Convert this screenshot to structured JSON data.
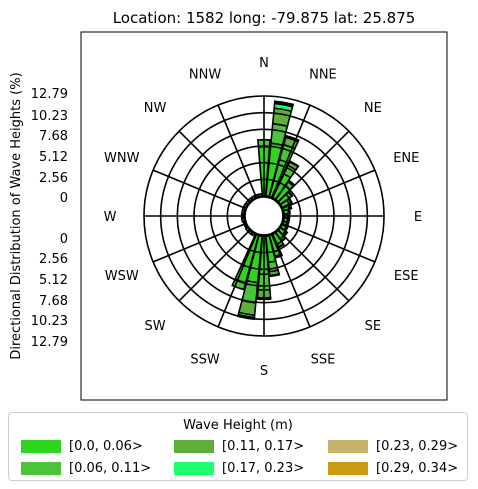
{
  "chart_data": {
    "type": "windrose",
    "title": "Location: 1582 long: -79.875 lat: 25.875",
    "ylabel": "Directional Distribution of Wave Heights (%)",
    "radial_ticks_upper": [
      "12.79",
      "10.23",
      "7.68",
      "5.12",
      "2.56",
      "0"
    ],
    "radial_ticks_lower": [
      "0",
      "2.56",
      "5.12",
      "7.68",
      "10.23",
      "12.79"
    ],
    "radial_max": 12.79,
    "direction_labels": [
      "N",
      "NNE",
      "NE",
      "ENE",
      "E",
      "ESE",
      "SE",
      "SSE",
      "S",
      "SSW",
      "SW",
      "WSW",
      "W",
      "WNW",
      "NW",
      "NNW"
    ],
    "sector_count": 36,
    "legend_title": "Wave Height (m)",
    "legend_placement": "bottom",
    "series": [
      {
        "name": "[0.0, 0.06>",
        "color": "#2ed41e",
        "values": [
          6.3,
          6.8,
          4.9,
          3.4,
          2.2,
          1.4,
          1.0,
          0.8,
          0.6,
          0.5,
          0.5,
          0.5,
          0.6,
          0.8,
          1.0,
          1.4,
          2.2,
          3.4,
          4.9,
          6.0,
          6.3,
          0.3,
          0.3,
          0.3,
          0.2,
          0.2,
          0.3,
          0.3,
          0.3,
          0.3,
          0.3,
          0.3,
          0.3,
          0.3,
          0.3,
          0.3
        ]
      },
      {
        "name": "[0.06, 0.11>",
        "color": "#4cc43a",
        "values": [
          0.9,
          2.5,
          2.0,
          1.2,
          0.6,
          0.4,
          0.3,
          0.2,
          0.2,
          0.2,
          0.2,
          0.2,
          0.2,
          0.2,
          0.3,
          0.4,
          0.6,
          1.2,
          2.0,
          2.6,
          0.9,
          0,
          0,
          0,
          0,
          0,
          0,
          0,
          0,
          0,
          0,
          0,
          0,
          0,
          0,
          0
        ]
      },
      {
        "name": "[0.11, 0.17>",
        "color": "#5fae3c",
        "values": [
          0,
          2.0,
          1.0,
          0.5,
          0.2,
          0.1,
          0.1,
          0.1,
          0,
          0,
          0,
          0,
          0,
          0.1,
          0.1,
          0.1,
          0.2,
          0.5,
          1.0,
          1.6,
          0,
          0,
          0,
          0,
          0,
          0,
          0,
          0,
          0,
          0,
          0,
          0,
          0,
          0,
          0,
          0
        ]
      },
      {
        "name": "[0.17, 0.23>",
        "color": "#1eff6e",
        "values": [
          0,
          0.6,
          0.2,
          0.1,
          0,
          0,
          0,
          0,
          0,
          0,
          0,
          0,
          0,
          0,
          0,
          0,
          0,
          0.1,
          0.2,
          0.3,
          0,
          0,
          0,
          0,
          0,
          0,
          0,
          0,
          0,
          0,
          0,
          0,
          0,
          0,
          0,
          0
        ]
      },
      {
        "name": "[0.23, 0.29>",
        "color": "#c7b26b",
        "values": [
          0,
          0.2,
          0,
          0,
          0,
          0,
          0,
          0,
          0,
          0,
          0,
          0,
          0,
          0,
          0,
          0,
          0,
          0,
          0,
          0.1,
          0,
          0,
          0,
          0,
          0,
          0,
          0,
          0,
          0,
          0,
          0,
          0,
          0,
          0,
          0,
          0
        ]
      },
      {
        "name": "[0.29, 0.34>",
        "color": "#c99a12",
        "values": [
          0,
          0.1,
          0,
          0,
          0,
          0,
          0,
          0,
          0,
          0,
          0,
          0,
          0,
          0,
          0,
          0,
          0,
          0,
          0,
          0.1,
          0,
          0,
          0,
          0,
          0,
          0,
          0,
          0,
          0,
          0,
          0,
          0,
          0,
          0,
          0,
          0
        ]
      }
    ]
  }
}
